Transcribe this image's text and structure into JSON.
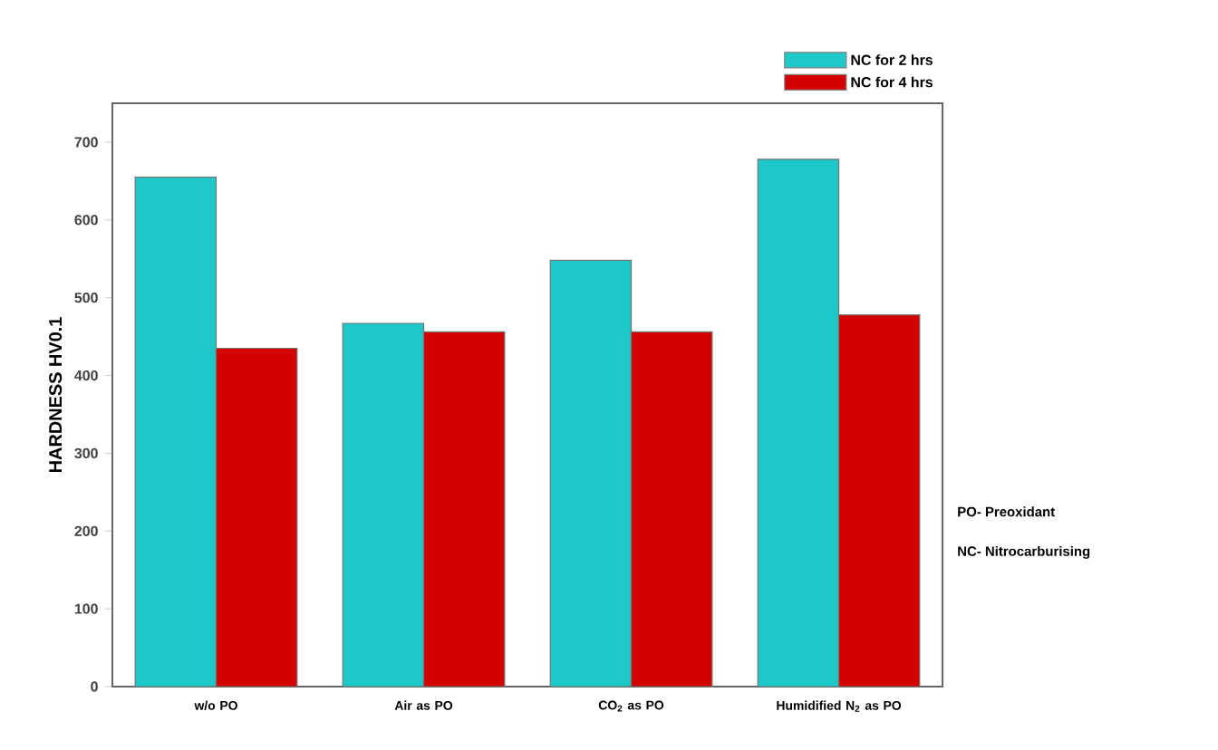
{
  "chart_data": {
    "type": "bar",
    "ylabel": "HARDNESS HV0.1",
    "categories": [
      "w/o PO",
      "Air as PO",
      "CO$_{2}$ as PO",
      "Humidified N$_{2}$ as PO"
    ],
    "series": [
      {
        "name": "NC for 2 hrs",
        "color": "#1ec8c8",
        "values": [
          655,
          467,
          548,
          678
        ]
      },
      {
        "name": "NC for 4 hrs",
        "color": "#d40000",
        "values": [
          435,
          456,
          456,
          478
        ]
      }
    ],
    "ylim": [
      0,
      750
    ],
    "yticks": [
      0,
      100,
      200,
      300,
      400,
      500,
      600,
      700
    ],
    "grid": false,
    "legend": "top right",
    "annotations": [
      "PO- Preoxidant",
      "NC- Nitrocarburising"
    ]
  }
}
